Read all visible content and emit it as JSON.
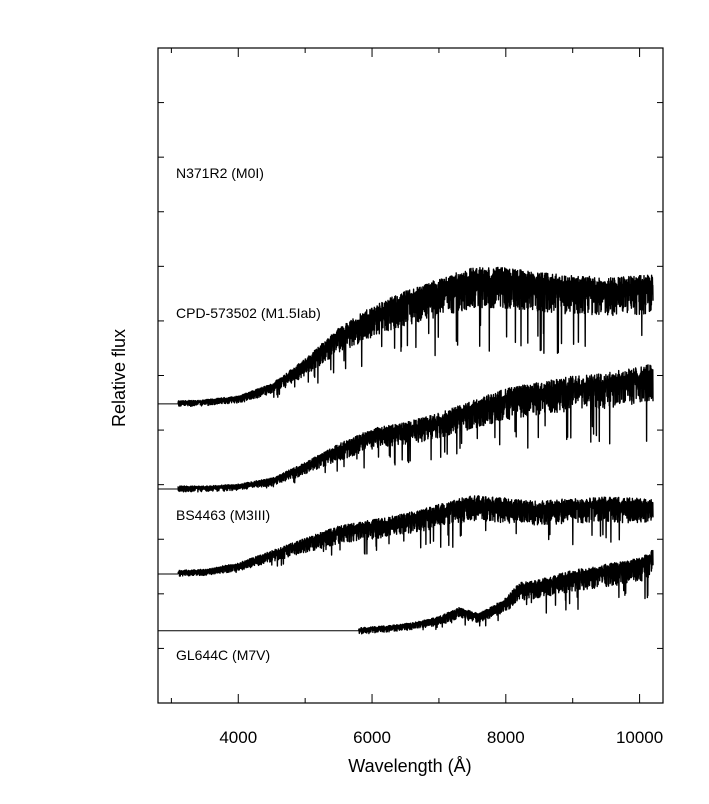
{
  "chart_data": {
    "type": "line",
    "xlabel": "Wavelength  (Å)",
    "ylabel": "Relative flux",
    "xlim": [
      2800,
      10350
    ],
    "xticks": [
      4000,
      6000,
      8000,
      10000
    ],
    "x_minor_step": 1000,
    "y_minor_tick_count": 12,
    "yticks_labeled": false,
    "grid": false,
    "legend": "none",
    "line_color": "#000000",
    "series": [
      {
        "name": "N371R2 (M0I)",
        "baseline_unit": 3.0,
        "x": [
          3100,
          3500,
          4000,
          4500,
          5000,
          5500,
          6000,
          6500,
          7000,
          7500,
          8000,
          8500,
          9000,
          9500,
          10000,
          10200
        ],
        "y": [
          0.02,
          0.04,
          0.1,
          0.3,
          0.7,
          1.2,
          1.55,
          1.8,
          2.0,
          2.18,
          2.18,
          2.1,
          2.05,
          2.02,
          2.05,
          2.08
        ]
      },
      {
        "name": "CPD-573502 (M1.5Iab)",
        "baseline_unit": 1.5,
        "x": [
          3100,
          3500,
          4000,
          4500,
          5000,
          5500,
          6000,
          6500,
          7000,
          7500,
          8000,
          8500,
          9000,
          9500,
          10000,
          10200
        ],
        "y": [
          0.02,
          0.02,
          0.05,
          0.15,
          0.4,
          0.7,
          0.95,
          1.05,
          1.2,
          1.4,
          1.6,
          1.7,
          1.8,
          1.85,
          1.95,
          2.0
        ]
      },
      {
        "name": "BS4463 (M3III)",
        "baseline_unit": 0.0,
        "x": [
          3100,
          3500,
          4000,
          4500,
          5000,
          5500,
          6000,
          6500,
          7000,
          7500,
          8000,
          8500,
          9000,
          9500,
          10000,
          10200
        ],
        "y": [
          0.03,
          0.05,
          0.15,
          0.35,
          0.55,
          0.75,
          0.85,
          0.95,
          1.1,
          1.25,
          1.2,
          1.15,
          1.2,
          1.22,
          1.2,
          1.2
        ]
      },
      {
        "name": "GL644C (M7V)",
        "baseline_unit": -1.0,
        "x": [
          5800,
          6200,
          6600,
          7000,
          7300,
          7600,
          8000,
          8200,
          8500,
          9000,
          9500,
          10000,
          10200
        ],
        "y": [
          0.02,
          0.05,
          0.1,
          0.2,
          0.35,
          0.25,
          0.5,
          0.75,
          0.8,
          0.95,
          1.05,
          1.15,
          1.3
        ]
      }
    ]
  }
}
